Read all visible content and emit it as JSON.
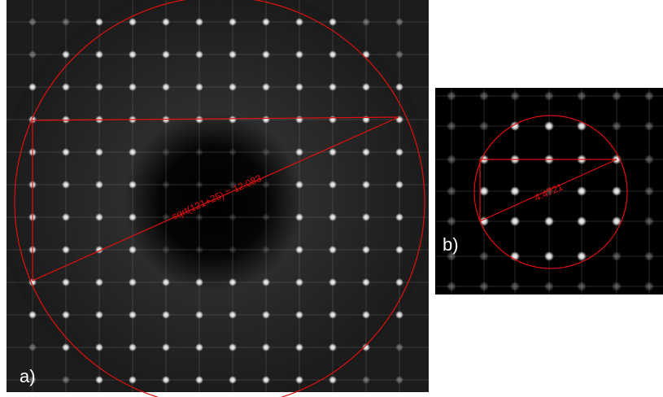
{
  "panels": [
    {
      "label": "a)",
      "annotation": "sqrt(121+25) = 12.083"
    },
    {
      "label": "b)",
      "annotation": "4.4721"
    }
  ]
}
